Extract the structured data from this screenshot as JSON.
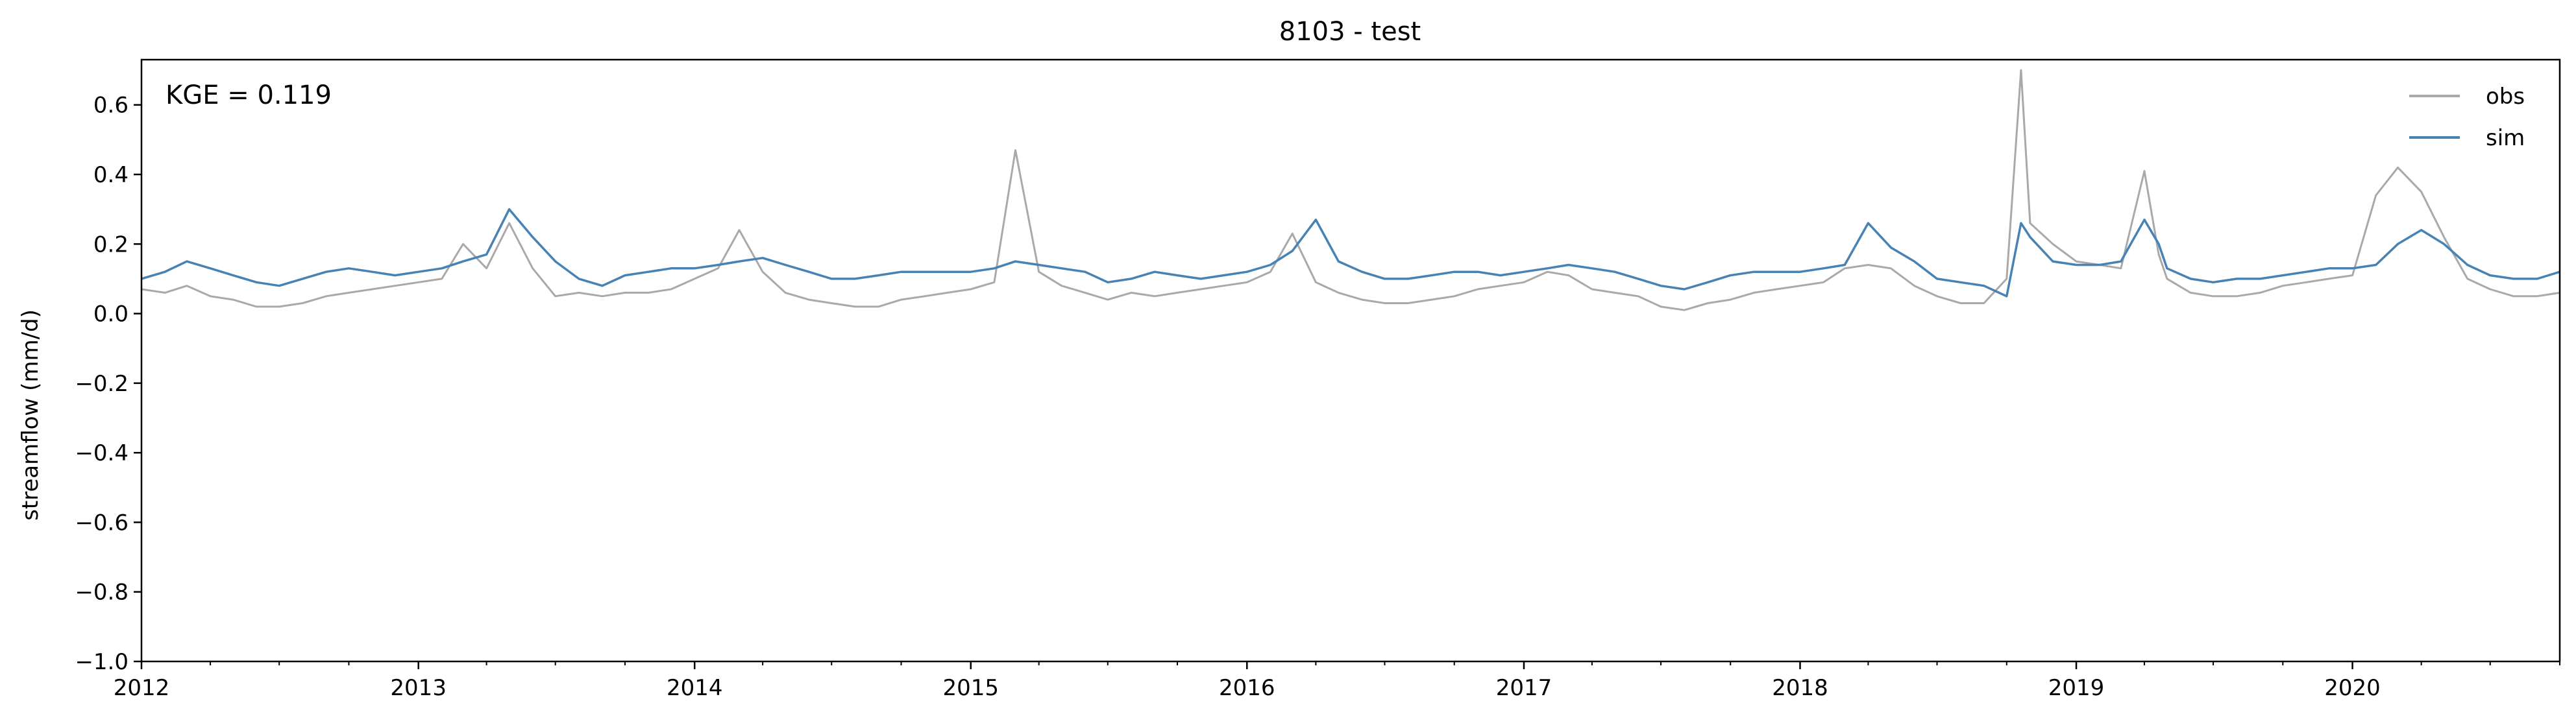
{
  "chart_data": {
    "type": "line",
    "title": "8103 - test",
    "xlabel": "",
    "ylabel": "streamflow (mm/d)",
    "annotation": "KGE = 0.119",
    "xlim": [
      "2012-01-01",
      "2020-10-01"
    ],
    "ylim": [
      -1.0,
      0.73
    ],
    "x_ticks": [
      "2012",
      "2013",
      "2014",
      "2015",
      "2016",
      "2017",
      "2018",
      "2019",
      "2020"
    ],
    "y_ticks": [
      "−1.0",
      "−0.8",
      "−0.6",
      "−0.4",
      "−0.2",
      "0.0",
      "0.2",
      "0.4",
      "0.6"
    ],
    "y_tick_values": [
      -1.0,
      -0.8,
      -0.6,
      -0.4,
      -0.2,
      0.0,
      0.2,
      0.4,
      0.6
    ],
    "grid": false,
    "legend_position": "top-right",
    "series": [
      {
        "name": "obs",
        "color": "#a9a9a9",
        "x": [
          "2012-01-01",
          "2012-02-01",
          "2012-03-01",
          "2012-04-01",
          "2012-05-01",
          "2012-06-01",
          "2012-07-01",
          "2012-08-01",
          "2012-09-01",
          "2012-10-01",
          "2012-11-01",
          "2012-12-01",
          "2013-01-01",
          "2013-02-01",
          "2013-03-01",
          "2013-04-01",
          "2013-05-01",
          "2013-06-01",
          "2013-07-01",
          "2013-08-01",
          "2013-09-01",
          "2013-10-01",
          "2013-11-01",
          "2013-12-01",
          "2014-01-01",
          "2014-02-01",
          "2014-03-01",
          "2014-04-01",
          "2014-05-01",
          "2014-06-01",
          "2014-07-01",
          "2014-08-01",
          "2014-09-01",
          "2014-10-01",
          "2014-11-01",
          "2014-12-01",
          "2015-01-01",
          "2015-02-01",
          "2015-03-01",
          "2015-04-01",
          "2015-05-01",
          "2015-06-01",
          "2015-07-01",
          "2015-08-01",
          "2015-09-01",
          "2015-10-01",
          "2015-11-01",
          "2015-12-01",
          "2016-01-01",
          "2016-02-01",
          "2016-03-01",
          "2016-04-01",
          "2016-05-01",
          "2016-06-01",
          "2016-07-01",
          "2016-08-01",
          "2016-09-01",
          "2016-10-01",
          "2016-11-01",
          "2016-12-01",
          "2017-01-01",
          "2017-02-01",
          "2017-03-01",
          "2017-04-01",
          "2017-05-01",
          "2017-06-01",
          "2017-07-01",
          "2017-08-01",
          "2017-09-01",
          "2017-10-01",
          "2017-11-01",
          "2017-12-01",
          "2018-01-01",
          "2018-02-01",
          "2018-03-01",
          "2018-04-01",
          "2018-05-01",
          "2018-06-01",
          "2018-07-01",
          "2018-08-01",
          "2018-09-01",
          "2018-10-01",
          "2018-10-20",
          "2018-11-01",
          "2018-12-01",
          "2019-01-01",
          "2019-02-01",
          "2019-03-01",
          "2019-04-01",
          "2019-04-20",
          "2019-05-01",
          "2019-06-01",
          "2019-07-01",
          "2019-08-01",
          "2019-09-01",
          "2019-10-01",
          "2019-11-01",
          "2019-12-01",
          "2020-01-01",
          "2020-02-01",
          "2020-03-01",
          "2020-04-01",
          "2020-05-01",
          "2020-06-01",
          "2020-07-01",
          "2020-08-01",
          "2020-09-01",
          "2020-10-01"
        ],
        "y": [
          0.07,
          0.06,
          0.08,
          0.05,
          0.04,
          0.02,
          0.02,
          0.03,
          0.05,
          0.06,
          0.07,
          0.08,
          0.09,
          0.1,
          0.2,
          0.13,
          0.26,
          0.13,
          0.05,
          0.06,
          0.05,
          0.06,
          0.06,
          0.07,
          0.1,
          0.13,
          0.24,
          0.12,
          0.06,
          0.04,
          0.03,
          0.02,
          0.02,
          0.04,
          0.05,
          0.06,
          0.07,
          0.09,
          0.47,
          0.12,
          0.08,
          0.06,
          0.04,
          0.06,
          0.05,
          0.06,
          0.07,
          0.08,
          0.09,
          0.12,
          0.23,
          0.09,
          0.06,
          0.04,
          0.03,
          0.03,
          0.04,
          0.05,
          0.07,
          0.08,
          0.09,
          0.12,
          0.11,
          0.07,
          0.06,
          0.05,
          0.02,
          0.01,
          0.03,
          0.04,
          0.06,
          0.07,
          0.08,
          0.09,
          0.13,
          0.14,
          0.13,
          0.08,
          0.05,
          0.03,
          0.03,
          0.1,
          0.7,
          0.26,
          0.2,
          0.15,
          0.14,
          0.13,
          0.41,
          0.17,
          0.1,
          0.06,
          0.05,
          0.05,
          0.06,
          0.08,
          0.09,
          0.1,
          0.11,
          0.34,
          0.42,
          0.35,
          0.22,
          0.1,
          0.07,
          0.05,
          0.05,
          0.06
        ]
      },
      {
        "name": "sim",
        "color": "#4682b4",
        "x": [
          "2012-01-01",
          "2012-02-01",
          "2012-03-01",
          "2012-04-01",
          "2012-05-01",
          "2012-06-01",
          "2012-07-01",
          "2012-08-01",
          "2012-09-01",
          "2012-10-01",
          "2012-11-01",
          "2012-12-01",
          "2013-01-01",
          "2013-02-01",
          "2013-03-01",
          "2013-04-01",
          "2013-05-01",
          "2013-06-01",
          "2013-07-01",
          "2013-08-01",
          "2013-09-01",
          "2013-10-01",
          "2013-11-01",
          "2013-12-01",
          "2014-01-01",
          "2014-02-01",
          "2014-03-01",
          "2014-04-01",
          "2014-05-01",
          "2014-06-01",
          "2014-07-01",
          "2014-08-01",
          "2014-09-01",
          "2014-10-01",
          "2014-11-01",
          "2014-12-01",
          "2015-01-01",
          "2015-02-01",
          "2015-03-01",
          "2015-04-01",
          "2015-05-01",
          "2015-06-01",
          "2015-07-01",
          "2015-08-01",
          "2015-09-01",
          "2015-10-01",
          "2015-11-01",
          "2015-12-01",
          "2016-01-01",
          "2016-02-01",
          "2016-03-01",
          "2016-04-01",
          "2016-05-01",
          "2016-06-01",
          "2016-07-01",
          "2016-08-01",
          "2016-09-01",
          "2016-10-01",
          "2016-11-01",
          "2016-12-01",
          "2017-01-01",
          "2017-02-01",
          "2017-03-01",
          "2017-04-01",
          "2017-05-01",
          "2017-06-01",
          "2017-07-01",
          "2017-08-01",
          "2017-09-01",
          "2017-10-01",
          "2017-11-01",
          "2017-12-01",
          "2018-01-01",
          "2018-02-01",
          "2018-03-01",
          "2018-04-01",
          "2018-05-01",
          "2018-06-01",
          "2018-07-01",
          "2018-08-01",
          "2018-09-01",
          "2018-10-01",
          "2018-10-20",
          "2018-11-01",
          "2018-12-01",
          "2019-01-01",
          "2019-02-01",
          "2019-03-01",
          "2019-04-01",
          "2019-04-20",
          "2019-05-01",
          "2019-06-01",
          "2019-07-01",
          "2019-08-01",
          "2019-09-01",
          "2019-10-01",
          "2019-11-01",
          "2019-12-01",
          "2020-01-01",
          "2020-02-01",
          "2020-03-01",
          "2020-04-01",
          "2020-05-01",
          "2020-06-01",
          "2020-07-01",
          "2020-08-01",
          "2020-09-01",
          "2020-10-01"
        ],
        "y": [
          0.1,
          0.12,
          0.15,
          0.13,
          0.11,
          0.09,
          0.08,
          0.1,
          0.12,
          0.13,
          0.12,
          0.11,
          0.12,
          0.13,
          0.15,
          0.17,
          0.3,
          0.22,
          0.15,
          0.1,
          0.08,
          0.11,
          0.12,
          0.13,
          0.13,
          0.14,
          0.15,
          0.16,
          0.14,
          0.12,
          0.1,
          0.1,
          0.11,
          0.12,
          0.12,
          0.12,
          0.12,
          0.13,
          0.15,
          0.14,
          0.13,
          0.12,
          0.09,
          0.1,
          0.12,
          0.11,
          0.1,
          0.11,
          0.12,
          0.14,
          0.18,
          0.27,
          0.15,
          0.12,
          0.1,
          0.1,
          0.11,
          0.12,
          0.12,
          0.11,
          0.12,
          0.13,
          0.14,
          0.13,
          0.12,
          0.1,
          0.08,
          0.07,
          0.09,
          0.11,
          0.12,
          0.12,
          0.12,
          0.13,
          0.14,
          0.26,
          0.19,
          0.15,
          0.1,
          0.09,
          0.08,
          0.05,
          0.26,
          0.22,
          0.15,
          0.14,
          0.14,
          0.15,
          0.27,
          0.2,
          0.13,
          0.1,
          0.09,
          0.1,
          0.1,
          0.11,
          0.12,
          0.13,
          0.13,
          0.14,
          0.2,
          0.24,
          0.2,
          0.14,
          0.11,
          0.1,
          0.1,
          0.12
        ]
      }
    ]
  }
}
